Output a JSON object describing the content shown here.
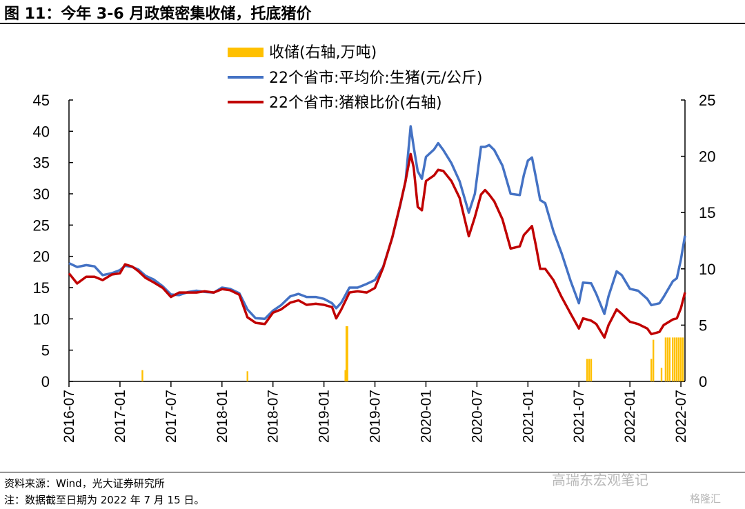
{
  "header": {
    "title": "图 11：今年 3-6 月政策密集收储，托底猪价"
  },
  "footer": {
    "source": "资料来源：Wind，光大证券研究所",
    "note": "注：数据截至日期为 2022 年 7 月 15 日。",
    "watermark": "高瑞东宏观笔记",
    "watermark2": "格隆汇"
  },
  "chart_data": {
    "type": "line",
    "legend_placement": "top-center",
    "x_ticks": [
      "2016-07",
      "2017-01",
      "2017-07",
      "2018-01",
      "2018-07",
      "2019-01",
      "2019-07",
      "2020-01",
      "2020-07",
      "2021-01",
      "2021-07",
      "2022-01",
      "2022-07"
    ],
    "x_range": [
      2016.5,
      2022.54
    ],
    "y_left": {
      "ticks": [
        "0",
        "5",
        "10",
        "15",
        "20",
        "25",
        "30",
        "35",
        "40",
        "45"
      ],
      "range": [
        0,
        45
      ]
    },
    "y_right": {
      "ticks": [
        "0",
        "5",
        "10",
        "15",
        "20",
        "25"
      ],
      "range": [
        0,
        25
      ]
    },
    "grid": false,
    "colors": {
      "storage": "#FFC000",
      "price": "#4472C4",
      "ratio": "#C00000"
    },
    "series": [
      {
        "name": "收储(右轴,万吨)",
        "kind": "bar",
        "axis": "right",
        "points": [
          [
            2017.22,
            1.0
          ],
          [
            2018.25,
            0.9
          ],
          [
            2019.21,
            1.0
          ],
          [
            2019.22,
            4.9
          ],
          [
            2019.23,
            4.9
          ],
          [
            2021.58,
            2.0
          ],
          [
            2021.6,
            2.0
          ],
          [
            2021.62,
            2.0
          ],
          [
            2022.21,
            2.0
          ],
          [
            2022.23,
            3.7
          ],
          [
            2022.31,
            1.2
          ],
          [
            2022.35,
            3.9
          ],
          [
            2022.37,
            3.9
          ],
          [
            2022.39,
            3.9
          ],
          [
            2022.42,
            3.9
          ],
          [
            2022.44,
            3.9
          ],
          [
            2022.46,
            3.9
          ],
          [
            2022.48,
            3.9
          ],
          [
            2022.5,
            3.9
          ],
          [
            2022.52,
            3.9
          ]
        ]
      },
      {
        "name": "22个省市:平均价:生猪(元/公斤)",
        "kind": "line",
        "axis": "left",
        "points": [
          [
            2016.5,
            18.9
          ],
          [
            2016.58,
            18.3
          ],
          [
            2016.67,
            18.6
          ],
          [
            2016.75,
            18.4
          ],
          [
            2016.83,
            17.0
          ],
          [
            2016.92,
            17.3
          ],
          [
            2017.0,
            17.8
          ],
          [
            2017.05,
            18.5
          ],
          [
            2017.12,
            18.3
          ],
          [
            2017.18,
            17.9
          ],
          [
            2017.25,
            16.9
          ],
          [
            2017.33,
            16.3
          ],
          [
            2017.42,
            15.2
          ],
          [
            2017.5,
            13.9
          ],
          [
            2017.58,
            13.8
          ],
          [
            2017.67,
            14.3
          ],
          [
            2017.75,
            14.5
          ],
          [
            2017.83,
            14.3
          ],
          [
            2017.92,
            14.2
          ],
          [
            2018.0,
            15.0
          ],
          [
            2018.08,
            14.8
          ],
          [
            2018.17,
            14.1
          ],
          [
            2018.25,
            11.5
          ],
          [
            2018.33,
            10.1
          ],
          [
            2018.42,
            10.0
          ],
          [
            2018.5,
            11.3
          ],
          [
            2018.58,
            12.2
          ],
          [
            2018.67,
            13.6
          ],
          [
            2018.75,
            14.0
          ],
          [
            2018.83,
            13.5
          ],
          [
            2018.92,
            13.5
          ],
          [
            2019.0,
            13.2
          ],
          [
            2019.08,
            12.5
          ],
          [
            2019.12,
            11.7
          ],
          [
            2019.17,
            12.6
          ],
          [
            2019.25,
            15.0
          ],
          [
            2019.33,
            15.0
          ],
          [
            2019.42,
            15.6
          ],
          [
            2019.5,
            16.2
          ],
          [
            2019.58,
            18.3
          ],
          [
            2019.67,
            23.0
          ],
          [
            2019.75,
            28.3
          ],
          [
            2019.8,
            32.0
          ],
          [
            2019.85,
            40.8
          ],
          [
            2019.88,
            37.5
          ],
          [
            2019.92,
            33.6
          ],
          [
            2019.96,
            32.4
          ],
          [
            2020.0,
            35.9
          ],
          [
            2020.08,
            37.1
          ],
          [
            2020.12,
            38.1
          ],
          [
            2020.17,
            37.0
          ],
          [
            2020.25,
            34.9
          ],
          [
            2020.33,
            32.0
          ],
          [
            2020.42,
            27.0
          ],
          [
            2020.48,
            30.0
          ],
          [
            2020.54,
            37.5
          ],
          [
            2020.58,
            37.5
          ],
          [
            2020.62,
            37.8
          ],
          [
            2020.67,
            37.0
          ],
          [
            2020.75,
            34.5
          ],
          [
            2020.83,
            30.0
          ],
          [
            2020.92,
            29.8
          ],
          [
            2020.96,
            33.0
          ],
          [
            2021.0,
            35.3
          ],
          [
            2021.04,
            35.8
          ],
          [
            2021.08,
            32.5
          ],
          [
            2021.12,
            29.0
          ],
          [
            2021.17,
            28.5
          ],
          [
            2021.25,
            24.0
          ],
          [
            2021.33,
            20.5
          ],
          [
            2021.42,
            16.0
          ],
          [
            2021.5,
            12.5
          ],
          [
            2021.54,
            15.8
          ],
          [
            2021.62,
            15.7
          ],
          [
            2021.67,
            14.0
          ],
          [
            2021.75,
            10.8
          ],
          [
            2021.79,
            13.6
          ],
          [
            2021.87,
            17.6
          ],
          [
            2021.92,
            17.0
          ],
          [
            2022.0,
            14.8
          ],
          [
            2022.08,
            14.5
          ],
          [
            2022.17,
            13.2
          ],
          [
            2022.21,
            12.2
          ],
          [
            2022.29,
            12.5
          ],
          [
            2022.33,
            13.5
          ],
          [
            2022.42,
            16.0
          ],
          [
            2022.46,
            16.5
          ],
          [
            2022.5,
            19.5
          ],
          [
            2022.54,
            23.3
          ]
        ]
      },
      {
        "name": "22个省市:猪粮比价(右轴)",
        "kind": "line",
        "axis": "right",
        "points": [
          [
            2016.5,
            9.6
          ],
          [
            2016.58,
            8.7
          ],
          [
            2016.67,
            9.3
          ],
          [
            2016.75,
            9.3
          ],
          [
            2016.83,
            9.0
          ],
          [
            2016.92,
            9.5
          ],
          [
            2017.0,
            9.6
          ],
          [
            2017.05,
            10.4
          ],
          [
            2017.12,
            10.2
          ],
          [
            2017.18,
            9.8
          ],
          [
            2017.25,
            9.2
          ],
          [
            2017.33,
            8.8
          ],
          [
            2017.42,
            8.3
          ],
          [
            2017.5,
            7.5
          ],
          [
            2017.58,
            7.9
          ],
          [
            2017.67,
            7.9
          ],
          [
            2017.75,
            7.9
          ],
          [
            2017.83,
            8.0
          ],
          [
            2017.92,
            7.9
          ],
          [
            2018.0,
            8.2
          ],
          [
            2018.08,
            8.1
          ],
          [
            2018.17,
            7.7
          ],
          [
            2018.25,
            5.7
          ],
          [
            2018.33,
            5.2
          ],
          [
            2018.42,
            5.1
          ],
          [
            2018.5,
            6.1
          ],
          [
            2018.58,
            6.4
          ],
          [
            2018.67,
            7.0
          ],
          [
            2018.75,
            7.2
          ],
          [
            2018.83,
            6.8
          ],
          [
            2018.92,
            6.9
          ],
          [
            2019.0,
            6.8
          ],
          [
            2019.08,
            6.6
          ],
          [
            2019.12,
            5.6
          ],
          [
            2019.17,
            6.4
          ],
          [
            2019.25,
            7.9
          ],
          [
            2019.33,
            8.0
          ],
          [
            2019.42,
            7.9
          ],
          [
            2019.5,
            8.3
          ],
          [
            2019.58,
            10.1
          ],
          [
            2019.67,
            12.8
          ],
          [
            2019.75,
            15.8
          ],
          [
            2019.8,
            17.8
          ],
          [
            2019.85,
            20.2
          ],
          [
            2019.88,
            19.0
          ],
          [
            2019.92,
            15.5
          ],
          [
            2019.96,
            15.2
          ],
          [
            2020.0,
            17.8
          ],
          [
            2020.08,
            18.3
          ],
          [
            2020.12,
            18.8
          ],
          [
            2020.17,
            18.7
          ],
          [
            2020.25,
            17.8
          ],
          [
            2020.33,
            16.3
          ],
          [
            2020.42,
            12.9
          ],
          [
            2020.48,
            14.6
          ],
          [
            2020.54,
            16.6
          ],
          [
            2020.58,
            17.0
          ],
          [
            2020.62,
            16.6
          ],
          [
            2020.67,
            16.0
          ],
          [
            2020.75,
            14.4
          ],
          [
            2020.83,
            11.8
          ],
          [
            2020.92,
            12.0
          ],
          [
            2020.96,
            13.0
          ],
          [
            2021.0,
            13.4
          ],
          [
            2021.04,
            13.8
          ],
          [
            2021.08,
            12.0
          ],
          [
            2021.12,
            10.0
          ],
          [
            2021.17,
            10.0
          ],
          [
            2021.25,
            9.0
          ],
          [
            2021.33,
            7.5
          ],
          [
            2021.42,
            6.0
          ],
          [
            2021.5,
            4.7
          ],
          [
            2021.54,
            5.6
          ],
          [
            2021.62,
            5.4
          ],
          [
            2021.67,
            5.1
          ],
          [
            2021.75,
            3.9
          ],
          [
            2021.79,
            5.0
          ],
          [
            2021.87,
            6.4
          ],
          [
            2021.92,
            6.0
          ],
          [
            2022.0,
            5.3
          ],
          [
            2022.08,
            5.1
          ],
          [
            2022.17,
            4.7
          ],
          [
            2022.21,
            4.2
          ],
          [
            2022.29,
            4.4
          ],
          [
            2022.33,
            5.0
          ],
          [
            2022.42,
            5.5
          ],
          [
            2022.46,
            5.6
          ],
          [
            2022.5,
            6.5
          ],
          [
            2022.54,
            7.9
          ]
        ]
      }
    ]
  }
}
